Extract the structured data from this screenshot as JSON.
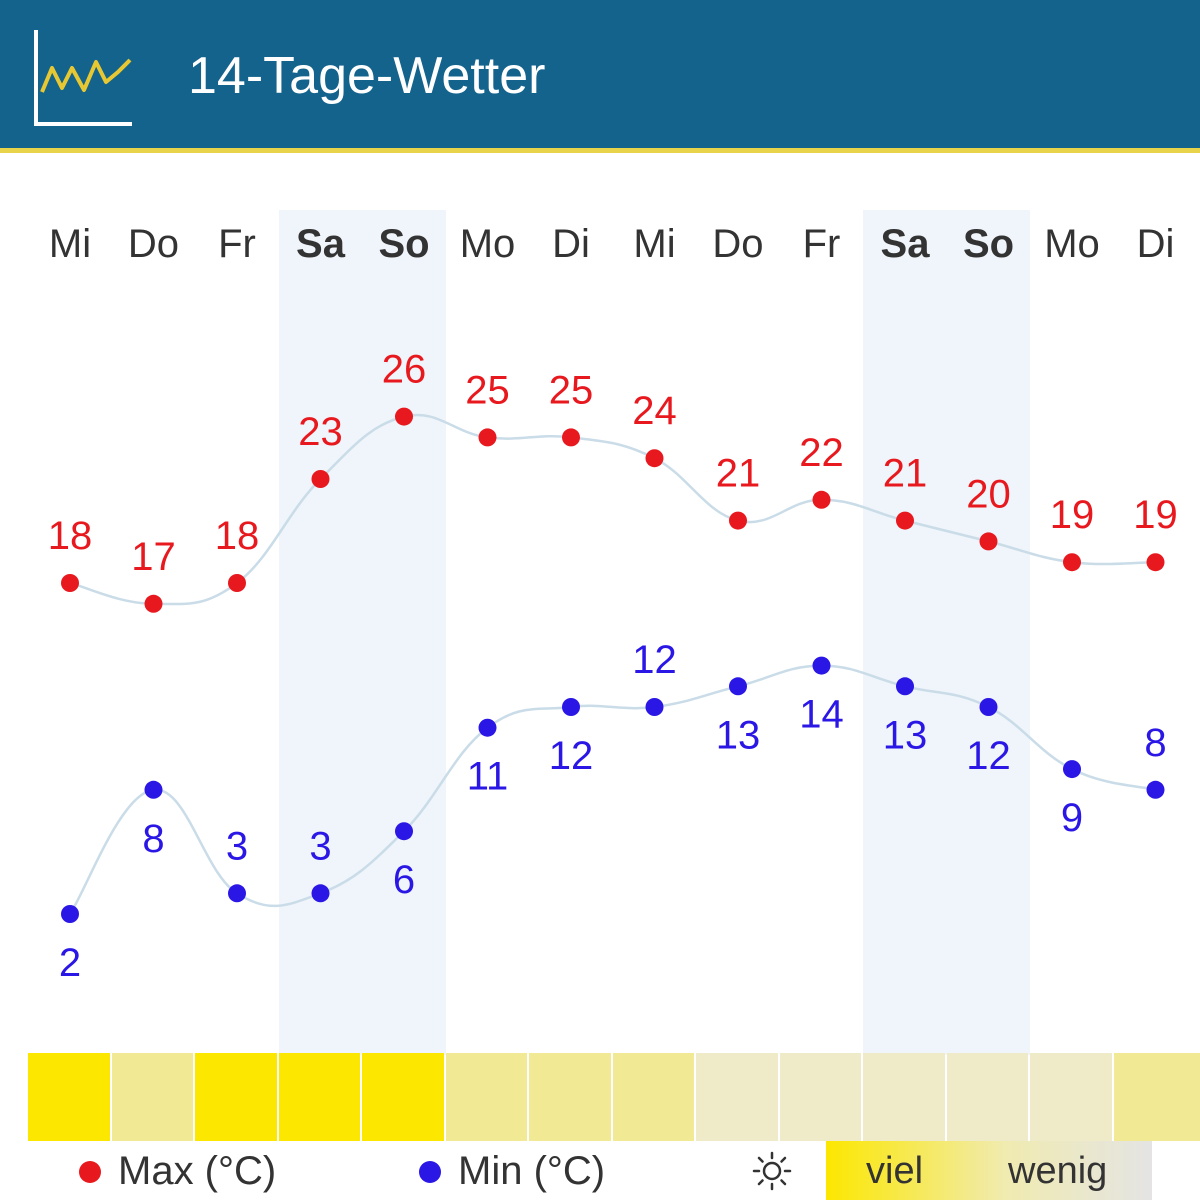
{
  "header": {
    "title": "14-Tage-Wetter",
    "icon": "temperature-chart-icon"
  },
  "chart_data": {
    "type": "line",
    "categories": [
      "Mi",
      "Do",
      "Fr",
      "Sa",
      "So",
      "Mo",
      "Di",
      "Mi",
      "Do",
      "Fr",
      "Sa",
      "So",
      "Mo",
      "Di"
    ],
    "weekend_days": [
      "Sa",
      "So"
    ],
    "series": [
      {
        "name": "Max (°C)",
        "color": "#e8191e",
        "values": [
          18,
          17,
          18,
          23,
          26,
          25,
          25,
          24,
          21,
          22,
          21,
          20,
          19,
          19
        ]
      },
      {
        "name": "Min (°C)",
        "color": "#2a17e6",
        "values": [
          2,
          8,
          3,
          3,
          6,
          11,
          12,
          12,
          13,
          14,
          13,
          12,
          9,
          8
        ]
      }
    ],
    "ylim": [
      0,
      30
    ],
    "grid": false,
    "line_color": "#c9dce8",
    "sunshine": {
      "icon": "sun-icon",
      "levels": [
        "viel",
        "mittel",
        "viel",
        "viel",
        "viel",
        "mittel",
        "mittel",
        "mittel",
        "wenig",
        "wenig",
        "wenig",
        "wenig",
        "wenig",
        "mittel"
      ],
      "colors": {
        "viel": "#fce700",
        "mittel": "#f2e995",
        "wenig": "#efebc9"
      },
      "scale_labels": [
        "viel",
        "wenig"
      ]
    },
    "legend_position": "bottom"
  },
  "legend": {
    "max_label": "Max (°C)",
    "min_label": "Min (°C)",
    "sun_icon": "sun-icon",
    "scale_high": "viel",
    "scale_low": "wenig"
  }
}
